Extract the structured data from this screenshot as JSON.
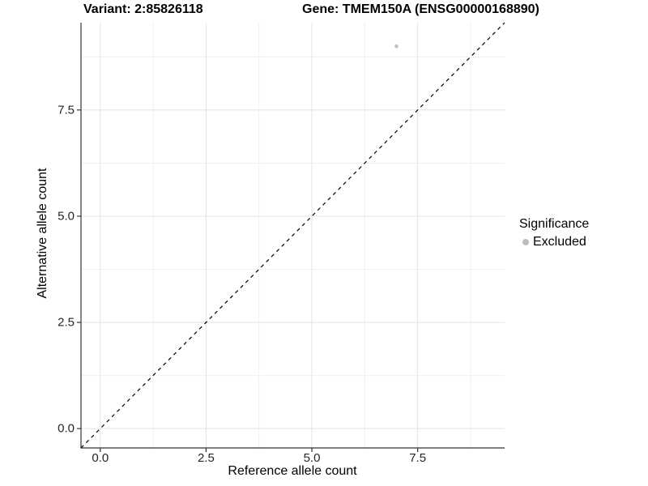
{
  "titles": {
    "variant": "Variant: 2:85826118",
    "gene": "Gene: TMEM150A (ENSG00000168890)"
  },
  "chart_data": {
    "type": "scatter",
    "xlabel": "Reference allele count",
    "ylabel": "Alternative allele count",
    "xlim": [
      -0.455,
      9.555
    ],
    "ylim": [
      -0.455,
      9.555
    ],
    "x_ticks": [
      0.0,
      2.5,
      5.0,
      7.5
    ],
    "y_ticks": [
      0.0,
      2.5,
      5.0,
      7.5
    ],
    "tick_decimals": 1,
    "grid": {
      "major": true,
      "minor": true
    },
    "points": [
      {
        "x": 7,
        "y": 9,
        "series": "Excluded"
      }
    ],
    "reference_line": {
      "slope": 1,
      "intercept": 0,
      "style": "dashed"
    },
    "legend": {
      "title": "Significance",
      "position": "right",
      "items": [
        {
          "label": "Excluded",
          "color": "#bdbdbd"
        }
      ]
    }
  },
  "colors": {
    "background": "#ffffff",
    "major_grid": "#e3e3e3",
    "minor_grid": "#f0f0f0",
    "axis_line": "#333333",
    "tick_mark": "#333333",
    "reference_line": "#000000",
    "point": "#bdbdbd"
  }
}
